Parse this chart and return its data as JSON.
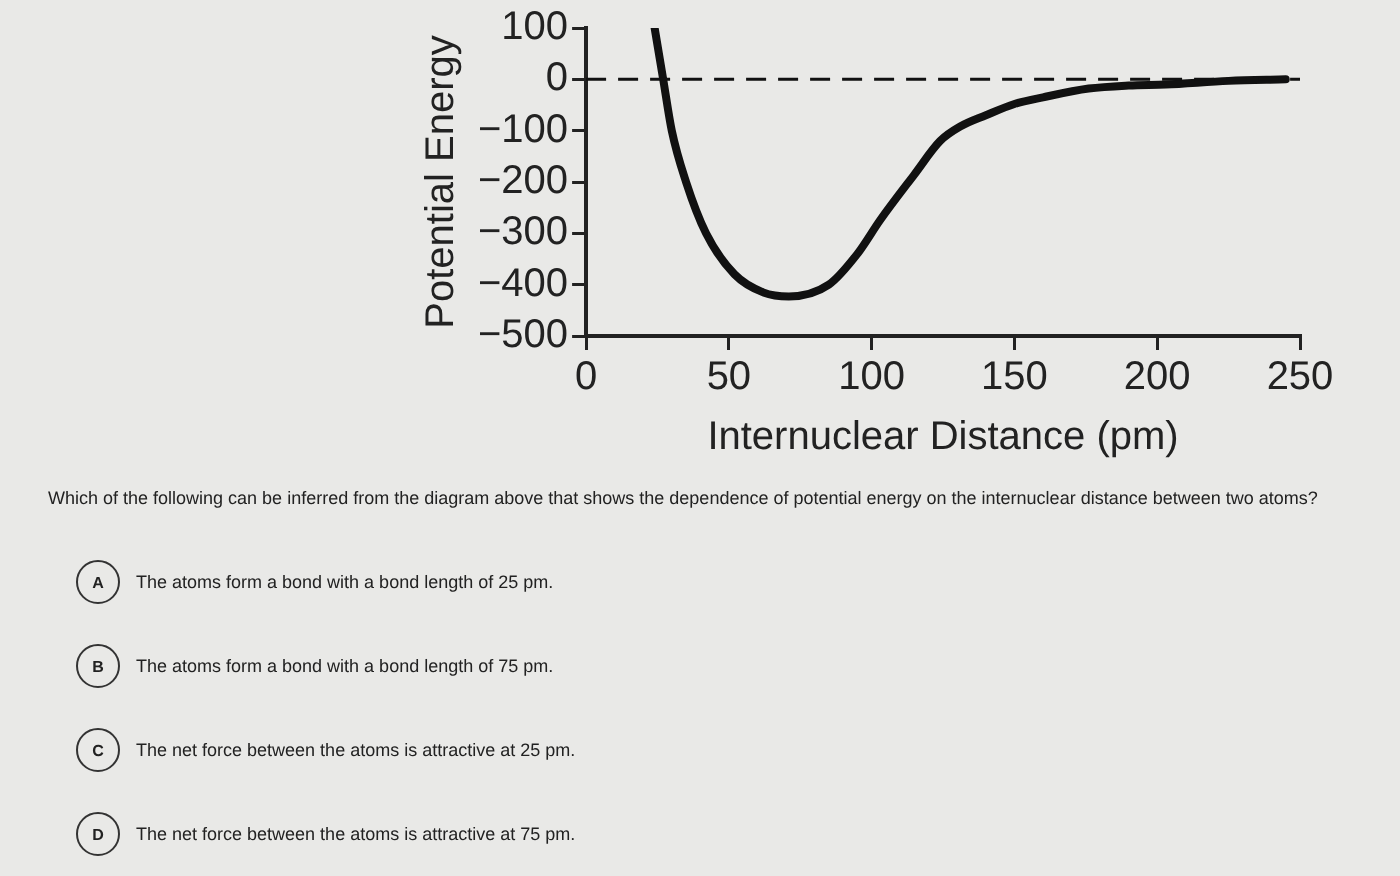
{
  "chart_data": {
    "type": "line",
    "xlabel": "Internuclear Distance (pm)",
    "ylabel": "Potential Energy",
    "x": [
      24,
      27,
      30,
      35,
      42,
      52,
      62,
      71,
      85,
      95,
      103,
      115,
      124,
      131,
      140,
      150,
      160,
      176,
      190,
      203,
      225,
      245
    ],
    "series": [
      {
        "color": "#111111",
        "values": [
          100,
          0,
          -100,
          -200,
          -300,
          -380,
          -415,
          -423,
          -400,
          -340,
          -274,
          -185,
          -120,
          -92,
          -70,
          -48,
          -35,
          -18,
          -12,
          -10,
          -3,
          0
        ]
      }
    ],
    "xlim": [
      0,
      250
    ],
    "xticks": [
      0,
      50,
      100,
      150,
      200,
      250
    ],
    "ylim": [
      -500,
      100
    ],
    "yticks": [
      -500,
      -400,
      -300,
      -200,
      -100,
      0,
      100
    ],
    "grid": false,
    "legend": false,
    "marker": "none",
    "line_style": "solid",
    "ref_lines": [
      {
        "axis": "y",
        "value": 0,
        "line_style": "dashed",
        "color": "#111111"
      }
    ],
    "annotations": [
      "Which of the following can be inferred from the diagram above that shows the dependence of potential energy on the internuclear distance between two atoms?",
      "A",
      "The atoms form a bond with a bond length of 25 pm.",
      "B",
      "The atoms form a bond with a bond length of 75 pm.",
      "C",
      "The net force between the atoms is attractive at 25 pm.",
      "D",
      "The net force between the atoms is attractive at 75 pm."
    ]
  }
}
